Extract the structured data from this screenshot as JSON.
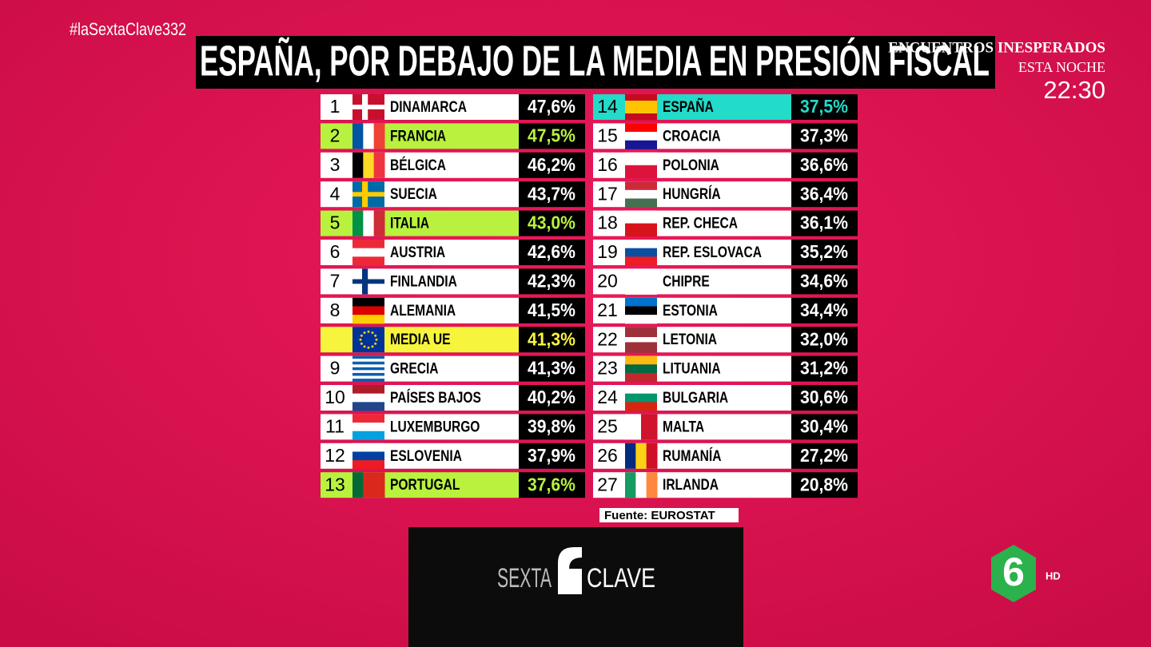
{
  "hashtag": "#laSextaClave332",
  "title": "ESPAÑA, POR DEBAJO DE LA MEDIA EN PRESIÓN FISCAL",
  "promo": {
    "show": "ENCUENTROS INESPERADOS",
    "when": "ESTA NOCHE",
    "time": "22:30"
  },
  "tables": [
    {
      "rows": [
        {
          "rank": "1",
          "country": "DINAMARCA",
          "value": "47,6%"
        },
        {
          "rank": "2",
          "country": "FRANCIA",
          "value": "47,5%",
          "highlight": "#b8f23e"
        },
        {
          "rank": "3",
          "country": "BÉLGICA",
          "value": "46,2%"
        },
        {
          "rank": "4",
          "country": "SUECIA",
          "value": "43,7%"
        },
        {
          "rank": "5",
          "country": "ITALIA",
          "value": "43,0%",
          "highlight": "#b8f23e"
        },
        {
          "rank": "6",
          "country": "AUSTRIA",
          "value": "42,6%"
        },
        {
          "rank": "7",
          "country": "FINLANDIA",
          "value": "42,3%"
        },
        {
          "rank": "8",
          "country": "ALEMANIA",
          "value": "41,5%"
        },
        {
          "country": "MEDIA UE",
          "value": "41,3%",
          "highlight": "#f6f43c"
        },
        {
          "rank": "9",
          "country": "GRECIA",
          "value": "41,3%"
        },
        {
          "rank": "10",
          "country": "PAÍSES BAJOS",
          "value": "40,2%"
        },
        {
          "rank": "11",
          "country": "LUXEMBURGO",
          "value": "39,8%"
        },
        {
          "rank": "12",
          "country": "ESLOVENIA",
          "value": "37,9%"
        },
        {
          "rank": "13",
          "country": "PORTUGAL",
          "value": "37,6%",
          "highlight": "#b8f23e"
        }
      ]
    },
    {
      "rows": [
        {
          "rank": "14",
          "country": "ESPAÑA",
          "value": "37,5%",
          "highlight": "#22dbc9"
        },
        {
          "rank": "15",
          "country": "CROACIA",
          "value": "37,3%"
        },
        {
          "rank": "16",
          "country": "POLONIA",
          "value": "36,6%"
        },
        {
          "rank": "17",
          "country": "HUNGRÍA",
          "value": "36,4%"
        },
        {
          "rank": "18",
          "country": "REP. CHECA",
          "value": "36,1%"
        },
        {
          "rank": "19",
          "country": "REP. ESLOVACA",
          "value": "35,2%"
        },
        {
          "rank": "20",
          "country": "CHIPRE",
          "value": "34,6%"
        },
        {
          "rank": "21",
          "country": "ESTONIA",
          "value": "34,4%"
        },
        {
          "rank": "22",
          "country": "LETONIA",
          "value": "32,0%"
        },
        {
          "rank": "23",
          "country": "LITUANIA",
          "value": "31,2%"
        },
        {
          "rank": "24",
          "country": "BULGARIA",
          "value": "30,6%"
        },
        {
          "rank": "25",
          "country": "MALTA",
          "value": "30,4%"
        },
        {
          "rank": "26",
          "country": "RUMANÍA",
          "value": "27,2%"
        },
        {
          "rank": "27",
          "country": "IRLANDA",
          "value": "20,8%"
        }
      ]
    }
  ],
  "source": "Fuente: EUROSTAT",
  "program_logo": {
    "left": "SEXTA",
    "right": "CLAVE"
  },
  "channel_logo": {
    "mark": "6",
    "quality": "HD"
  }
}
